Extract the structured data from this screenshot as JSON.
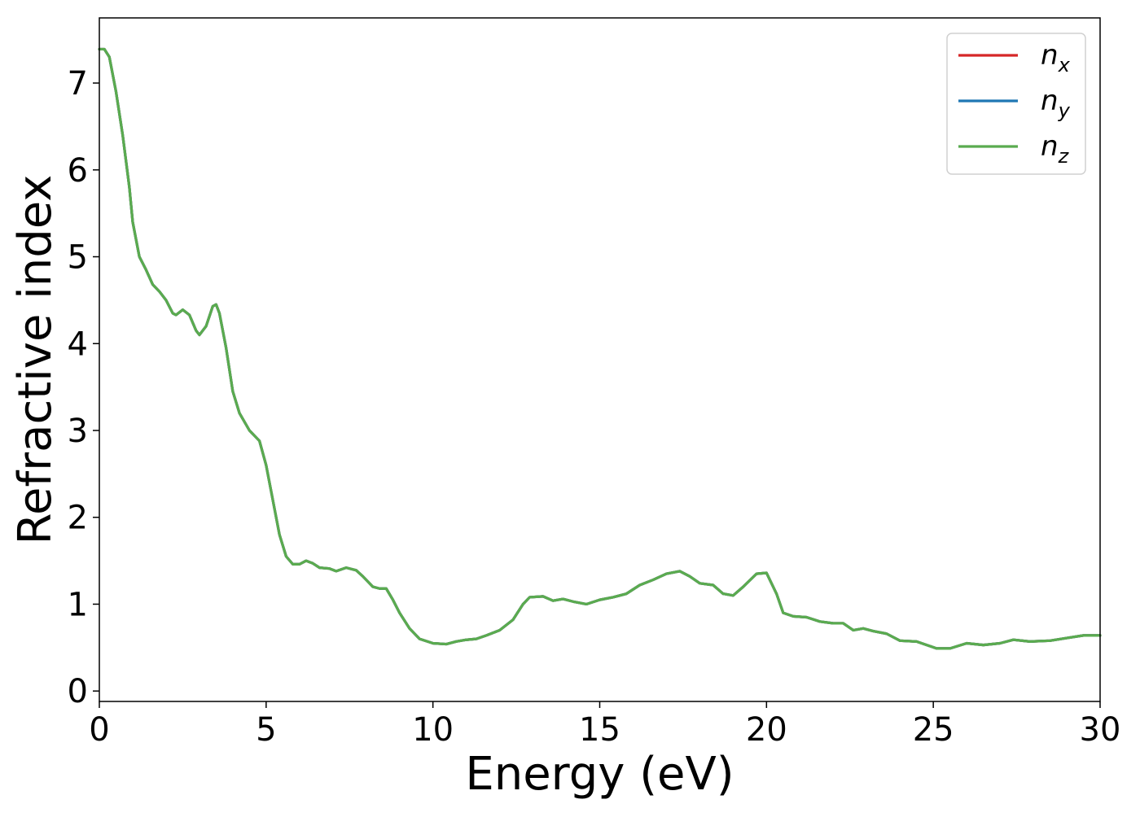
{
  "chart_data": {
    "type": "line",
    "title": "",
    "xlabel": "Energy (eV)",
    "ylabel": "Refractive index",
    "xlim": [
      0,
      30
    ],
    "ylim": [
      -0.12,
      7.75
    ],
    "xticks": [
      0,
      5,
      10,
      15,
      20,
      25,
      30
    ],
    "yticks": [
      0,
      1,
      2,
      3,
      4,
      5,
      6,
      7
    ],
    "grid": false,
    "legend_position": "top-right",
    "series": [
      {
        "name": "n",
        "subscript": "x",
        "color": "#d62728",
        "points": [
          [
            0,
            7.39
          ],
          [
            0.15,
            7.39
          ],
          [
            0.3,
            7.3
          ],
          [
            0.5,
            6.9
          ],
          [
            0.7,
            6.4
          ],
          [
            0.9,
            5.8
          ],
          [
            1.0,
            5.4
          ],
          [
            1.2,
            5.0
          ],
          [
            1.4,
            4.85
          ],
          [
            1.6,
            4.68
          ],
          [
            1.8,
            4.6
          ],
          [
            2.0,
            4.5
          ],
          [
            2.2,
            4.35
          ],
          [
            2.3,
            4.33
          ],
          [
            2.5,
            4.39
          ],
          [
            2.7,
            4.33
          ],
          [
            2.9,
            4.15
          ],
          [
            3.0,
            4.1
          ],
          [
            3.2,
            4.2
          ],
          [
            3.4,
            4.43
          ],
          [
            3.5,
            4.45
          ],
          [
            3.6,
            4.35
          ],
          [
            3.8,
            3.95
          ],
          [
            4.0,
            3.45
          ],
          [
            4.2,
            3.2
          ],
          [
            4.5,
            3.0
          ],
          [
            4.8,
            2.88
          ],
          [
            5.0,
            2.6
          ],
          [
            5.2,
            2.2
          ],
          [
            5.4,
            1.8
          ],
          [
            5.6,
            1.55
          ],
          [
            5.8,
            1.46
          ],
          [
            6.0,
            1.46
          ],
          [
            6.2,
            1.5
          ],
          [
            6.4,
            1.47
          ],
          [
            6.6,
            1.42
          ],
          [
            6.9,
            1.41
          ],
          [
            7.1,
            1.38
          ],
          [
            7.4,
            1.42
          ],
          [
            7.7,
            1.39
          ],
          [
            7.9,
            1.32
          ],
          [
            8.2,
            1.2
          ],
          [
            8.4,
            1.18
          ],
          [
            8.6,
            1.18
          ],
          [
            8.8,
            1.05
          ],
          [
            9.0,
            0.9
          ],
          [
            9.3,
            0.72
          ],
          [
            9.6,
            0.6
          ],
          [
            10.0,
            0.55
          ],
          [
            10.4,
            0.54
          ],
          [
            10.7,
            0.57
          ],
          [
            11.0,
            0.59
          ],
          [
            11.3,
            0.6
          ],
          [
            11.6,
            0.64
          ],
          [
            12.0,
            0.7
          ],
          [
            12.4,
            0.82
          ],
          [
            12.7,
            1.0
          ],
          [
            12.9,
            1.08
          ],
          [
            13.3,
            1.09
          ],
          [
            13.6,
            1.04
          ],
          [
            13.9,
            1.06
          ],
          [
            14.2,
            1.03
          ],
          [
            14.6,
            1.0
          ],
          [
            15.0,
            1.05
          ],
          [
            15.4,
            1.08
          ],
          [
            15.8,
            1.12
          ],
          [
            16.2,
            1.22
          ],
          [
            16.6,
            1.28
          ],
          [
            17.0,
            1.35
          ],
          [
            17.4,
            1.38
          ],
          [
            17.7,
            1.32
          ],
          [
            18.0,
            1.24
          ],
          [
            18.4,
            1.22
          ],
          [
            18.7,
            1.12
          ],
          [
            19.0,
            1.1
          ],
          [
            19.3,
            1.2
          ],
          [
            19.7,
            1.35
          ],
          [
            20.0,
            1.36
          ],
          [
            20.3,
            1.12
          ],
          [
            20.5,
            0.9
          ],
          [
            20.8,
            0.86
          ],
          [
            21.2,
            0.85
          ],
          [
            21.6,
            0.8
          ],
          [
            22.0,
            0.78
          ],
          [
            22.3,
            0.78
          ],
          [
            22.6,
            0.7
          ],
          [
            22.9,
            0.72
          ],
          [
            23.2,
            0.69
          ],
          [
            23.6,
            0.66
          ],
          [
            24.0,
            0.58
          ],
          [
            24.5,
            0.57
          ],
          [
            24.8,
            0.53
          ],
          [
            25.1,
            0.49
          ],
          [
            25.5,
            0.49
          ],
          [
            26.0,
            0.55
          ],
          [
            26.5,
            0.53
          ],
          [
            27.0,
            0.55
          ],
          [
            27.4,
            0.59
          ],
          [
            27.9,
            0.57
          ],
          [
            28.5,
            0.58
          ],
          [
            29.0,
            0.61
          ],
          [
            29.5,
            0.64
          ],
          [
            30.0,
            0.64
          ]
        ]
      },
      {
        "name": "n",
        "subscript": "y",
        "color": "#1f77b4",
        "points": [
          [
            0,
            7.39
          ],
          [
            0.15,
            7.39
          ],
          [
            0.3,
            7.3
          ],
          [
            0.5,
            6.9
          ],
          [
            0.7,
            6.4
          ],
          [
            0.9,
            5.8
          ],
          [
            1.0,
            5.4
          ],
          [
            1.2,
            5.0
          ],
          [
            1.4,
            4.85
          ],
          [
            1.6,
            4.68
          ],
          [
            1.8,
            4.6
          ],
          [
            2.0,
            4.5
          ],
          [
            2.2,
            4.35
          ],
          [
            2.3,
            4.33
          ],
          [
            2.5,
            4.39
          ],
          [
            2.7,
            4.33
          ],
          [
            2.9,
            4.15
          ],
          [
            3.0,
            4.1
          ],
          [
            3.2,
            4.2
          ],
          [
            3.4,
            4.43
          ],
          [
            3.5,
            4.45
          ],
          [
            3.6,
            4.35
          ],
          [
            3.8,
            3.95
          ],
          [
            4.0,
            3.45
          ],
          [
            4.2,
            3.2
          ],
          [
            4.5,
            3.0
          ],
          [
            4.8,
            2.88
          ],
          [
            5.0,
            2.6
          ],
          [
            5.2,
            2.2
          ],
          [
            5.4,
            1.8
          ],
          [
            5.6,
            1.55
          ],
          [
            5.8,
            1.46
          ],
          [
            6.0,
            1.46
          ],
          [
            6.2,
            1.5
          ],
          [
            6.4,
            1.47
          ],
          [
            6.6,
            1.42
          ],
          [
            6.9,
            1.41
          ],
          [
            7.1,
            1.38
          ],
          [
            7.4,
            1.42
          ],
          [
            7.7,
            1.39
          ],
          [
            7.9,
            1.32
          ],
          [
            8.2,
            1.2
          ],
          [
            8.4,
            1.18
          ],
          [
            8.6,
            1.18
          ],
          [
            8.8,
            1.05
          ],
          [
            9.0,
            0.9
          ],
          [
            9.3,
            0.72
          ],
          [
            9.6,
            0.6
          ],
          [
            10.0,
            0.55
          ],
          [
            10.4,
            0.54
          ],
          [
            10.7,
            0.57
          ],
          [
            11.0,
            0.59
          ],
          [
            11.3,
            0.6
          ],
          [
            11.6,
            0.64
          ],
          [
            12.0,
            0.7
          ],
          [
            12.4,
            0.82
          ],
          [
            12.7,
            1.0
          ],
          [
            12.9,
            1.08
          ],
          [
            13.3,
            1.09
          ],
          [
            13.6,
            1.04
          ],
          [
            13.9,
            1.06
          ],
          [
            14.2,
            1.03
          ],
          [
            14.6,
            1.0
          ],
          [
            15.0,
            1.05
          ],
          [
            15.4,
            1.08
          ],
          [
            15.8,
            1.12
          ],
          [
            16.2,
            1.22
          ],
          [
            16.6,
            1.28
          ],
          [
            17.0,
            1.35
          ],
          [
            17.4,
            1.38
          ],
          [
            17.7,
            1.32
          ],
          [
            18.0,
            1.24
          ],
          [
            18.4,
            1.22
          ],
          [
            18.7,
            1.12
          ],
          [
            19.0,
            1.1
          ],
          [
            19.3,
            1.2
          ],
          [
            19.7,
            1.35
          ],
          [
            20.0,
            1.36
          ],
          [
            20.3,
            1.12
          ],
          [
            20.5,
            0.9
          ],
          [
            20.8,
            0.86
          ],
          [
            21.2,
            0.85
          ],
          [
            21.6,
            0.8
          ],
          [
            22.0,
            0.78
          ],
          [
            22.3,
            0.78
          ],
          [
            22.6,
            0.7
          ],
          [
            22.9,
            0.72
          ],
          [
            23.2,
            0.69
          ],
          [
            23.6,
            0.66
          ],
          [
            24.0,
            0.58
          ],
          [
            24.5,
            0.57
          ],
          [
            24.8,
            0.53
          ],
          [
            25.1,
            0.49
          ],
          [
            25.5,
            0.49
          ],
          [
            26.0,
            0.55
          ],
          [
            26.5,
            0.53
          ],
          [
            27.0,
            0.55
          ],
          [
            27.4,
            0.59
          ],
          [
            27.9,
            0.57
          ],
          [
            28.5,
            0.58
          ],
          [
            29.0,
            0.61
          ],
          [
            29.5,
            0.64
          ],
          [
            30.0,
            0.64
          ]
        ]
      },
      {
        "name": "n",
        "subscript": "z",
        "color": "#5aab4f",
        "points": [
          [
            0,
            7.39
          ],
          [
            0.15,
            7.39
          ],
          [
            0.3,
            7.3
          ],
          [
            0.5,
            6.9
          ],
          [
            0.7,
            6.4
          ],
          [
            0.9,
            5.8
          ],
          [
            1.0,
            5.4
          ],
          [
            1.2,
            5.0
          ],
          [
            1.4,
            4.85
          ],
          [
            1.6,
            4.68
          ],
          [
            1.8,
            4.6
          ],
          [
            2.0,
            4.5
          ],
          [
            2.2,
            4.35
          ],
          [
            2.3,
            4.33
          ],
          [
            2.5,
            4.39
          ],
          [
            2.7,
            4.33
          ],
          [
            2.9,
            4.15
          ],
          [
            3.0,
            4.1
          ],
          [
            3.2,
            4.2
          ],
          [
            3.4,
            4.43
          ],
          [
            3.5,
            4.45
          ],
          [
            3.6,
            4.35
          ],
          [
            3.8,
            3.95
          ],
          [
            4.0,
            3.45
          ],
          [
            4.2,
            3.2
          ],
          [
            4.5,
            3.0
          ],
          [
            4.8,
            2.88
          ],
          [
            5.0,
            2.6
          ],
          [
            5.2,
            2.2
          ],
          [
            5.4,
            1.8
          ],
          [
            5.6,
            1.55
          ],
          [
            5.8,
            1.46
          ],
          [
            6.0,
            1.46
          ],
          [
            6.2,
            1.5
          ],
          [
            6.4,
            1.47
          ],
          [
            6.6,
            1.42
          ],
          [
            6.9,
            1.41
          ],
          [
            7.1,
            1.38
          ],
          [
            7.4,
            1.42
          ],
          [
            7.7,
            1.39
          ],
          [
            7.9,
            1.32
          ],
          [
            8.2,
            1.2
          ],
          [
            8.4,
            1.18
          ],
          [
            8.6,
            1.18
          ],
          [
            8.8,
            1.05
          ],
          [
            9.0,
            0.9
          ],
          [
            9.3,
            0.72
          ],
          [
            9.6,
            0.6
          ],
          [
            10.0,
            0.55
          ],
          [
            10.4,
            0.54
          ],
          [
            10.7,
            0.57
          ],
          [
            11.0,
            0.59
          ],
          [
            11.3,
            0.6
          ],
          [
            11.6,
            0.64
          ],
          [
            12.0,
            0.7
          ],
          [
            12.4,
            0.82
          ],
          [
            12.7,
            1.0
          ],
          [
            12.9,
            1.08
          ],
          [
            13.3,
            1.09
          ],
          [
            13.6,
            1.04
          ],
          [
            13.9,
            1.06
          ],
          [
            14.2,
            1.03
          ],
          [
            14.6,
            1.0
          ],
          [
            15.0,
            1.05
          ],
          [
            15.4,
            1.08
          ],
          [
            15.8,
            1.12
          ],
          [
            16.2,
            1.22
          ],
          [
            16.6,
            1.28
          ],
          [
            17.0,
            1.35
          ],
          [
            17.4,
            1.38
          ],
          [
            17.7,
            1.32
          ],
          [
            18.0,
            1.24
          ],
          [
            18.4,
            1.22
          ],
          [
            18.7,
            1.12
          ],
          [
            19.0,
            1.1
          ],
          [
            19.3,
            1.2
          ],
          [
            19.7,
            1.35
          ],
          [
            20.0,
            1.36
          ],
          [
            20.3,
            1.12
          ],
          [
            20.5,
            0.9
          ],
          [
            20.8,
            0.86
          ],
          [
            21.2,
            0.85
          ],
          [
            21.6,
            0.8
          ],
          [
            22.0,
            0.78
          ],
          [
            22.3,
            0.78
          ],
          [
            22.6,
            0.7
          ],
          [
            22.9,
            0.72
          ],
          [
            23.2,
            0.69
          ],
          [
            23.6,
            0.66
          ],
          [
            24.0,
            0.58
          ],
          [
            24.5,
            0.57
          ],
          [
            24.8,
            0.53
          ],
          [
            25.1,
            0.49
          ],
          [
            25.5,
            0.49
          ],
          [
            26.0,
            0.55
          ],
          [
            26.5,
            0.53
          ],
          [
            27.0,
            0.55
          ],
          [
            27.4,
            0.59
          ],
          [
            27.9,
            0.57
          ],
          [
            28.5,
            0.58
          ],
          [
            29.0,
            0.61
          ],
          [
            29.5,
            0.64
          ],
          [
            30.0,
            0.64
          ]
        ]
      }
    ]
  }
}
